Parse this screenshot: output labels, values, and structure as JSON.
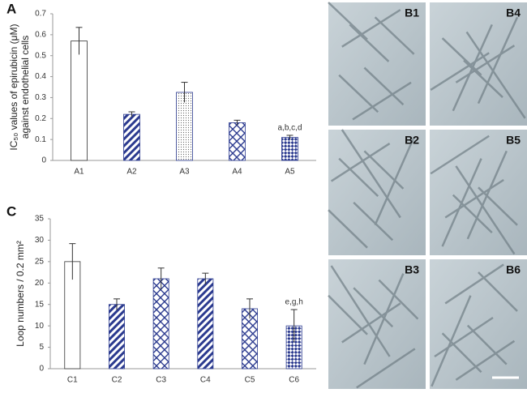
{
  "chart_data": [
    {
      "type": "bar",
      "panel": "A",
      "ylabel": [
        "IC₅₀ values of epirubicin (μM)",
        "against endothelial cells"
      ],
      "categories": [
        "A1",
        "A2",
        "A3",
        "A4",
        "A5"
      ],
      "values": [
        0.57,
        0.22,
        0.325,
        0.18,
        0.11
      ],
      "errors": [
        0.065,
        0.012,
        0.048,
        0.012,
        0.01
      ],
      "fills": [
        "white",
        "stripes",
        "dots",
        "lattice",
        "checker"
      ],
      "color": "#2b3a8f",
      "annotation": "a,b,c,d",
      "ylim": [
        0,
        0.7
      ],
      "yticks": [
        0,
        0.1,
        0.2,
        0.3,
        0.4,
        0.5,
        0.6,
        0.7
      ]
    },
    {
      "type": "bar",
      "panel": "C",
      "ylabel": [
        "Loop numbers / 0.2 mm²"
      ],
      "categories": [
        "C1",
        "C2",
        "C3",
        "C4",
        "C5",
        "C6"
      ],
      "values": [
        25,
        15,
        21,
        21,
        14,
        10
      ],
      "errors": [
        4.2,
        1.3,
        2.5,
        1.3,
        2.3,
        3.8
      ],
      "fills": [
        "white",
        "stripes",
        "lattice",
        "stripes",
        "lattice",
        "checker"
      ],
      "color": "#2b3a8f",
      "annotation": "e,g,h",
      "ylim": [
        0,
        35
      ],
      "yticks": [
        0,
        5,
        10,
        15,
        20,
        25,
        30,
        35
      ]
    }
  ],
  "images": {
    "panel": "B",
    "labels": [
      "B1",
      "B4",
      "B2",
      "B5",
      "B3",
      "B6"
    ]
  }
}
